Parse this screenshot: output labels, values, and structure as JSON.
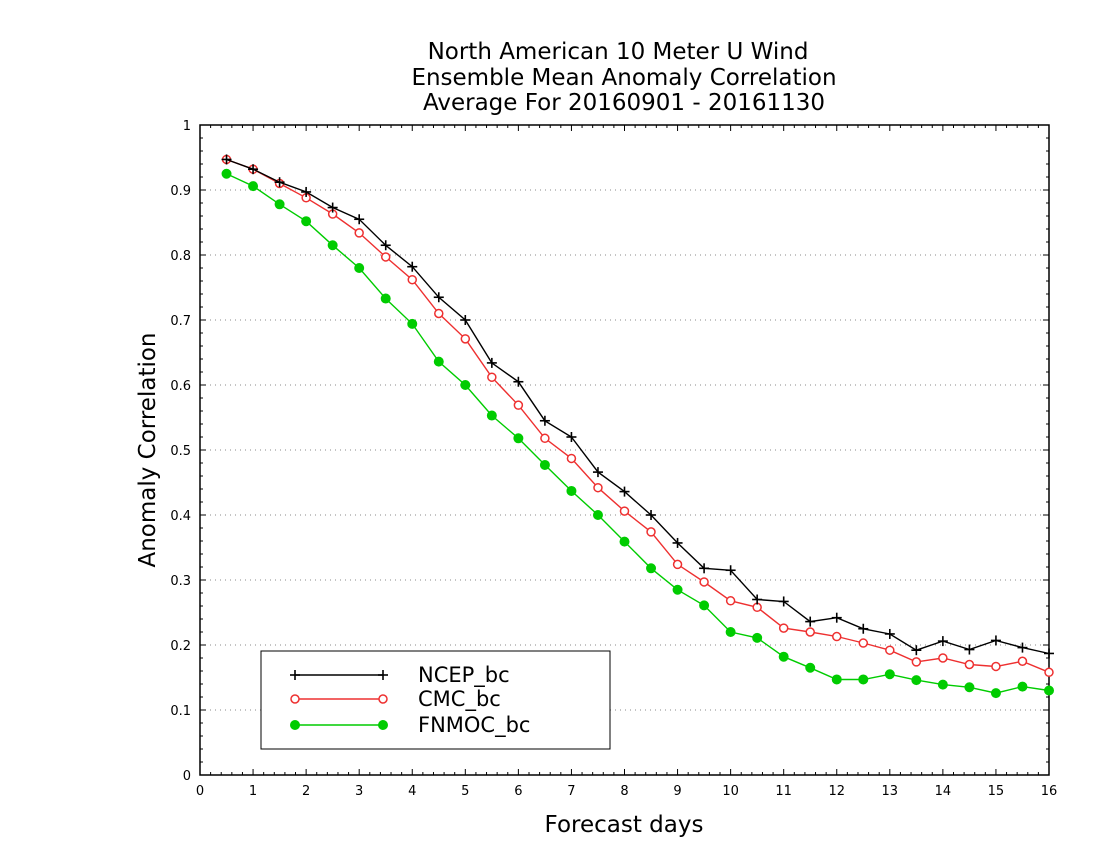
{
  "chart_data": {
    "type": "line",
    "title": [
      "North American 10 Meter U Wind",
      "Ensemble Mean Anomaly Correlation",
      "Average For 20160901 - 20161130"
    ],
    "xlabel": "Forecast days",
    "ylabel": "Anomaly Correlation",
    "xlim": [
      0,
      16
    ],
    "ylim": [
      0,
      1
    ],
    "xticks": [
      0,
      1,
      2,
      3,
      4,
      5,
      6,
      7,
      8,
      9,
      10,
      11,
      12,
      13,
      14,
      15,
      16
    ],
    "xtick_labels": [
      "0",
      "1",
      "2",
      "3",
      "4",
      "5",
      "6",
      "7",
      "8",
      "9",
      "10",
      "11",
      "12",
      "13",
      "14",
      "15",
      "16"
    ],
    "yticks": [
      0,
      0.1,
      0.2,
      0.3,
      0.4,
      0.5,
      0.6,
      0.7,
      0.8,
      0.9,
      1
    ],
    "ytick_labels": [
      "0",
      "0.1",
      "0.2",
      "0.3",
      "0.4",
      "0.5",
      "0.6",
      "0.7",
      "0.8",
      "0.9",
      "1"
    ],
    "grid": "horizontal-dotted",
    "legend_position": "bottom-left",
    "x": [
      0.5,
      1,
      1.5,
      2,
      2.5,
      3,
      3.5,
      4,
      4.5,
      5,
      5.5,
      6,
      6.5,
      7,
      7.5,
      8,
      8.5,
      9,
      9.5,
      10,
      10.5,
      11,
      11.5,
      12,
      12.5,
      13,
      13.5,
      14,
      14.5,
      15,
      15.5,
      16
    ],
    "series": [
      {
        "name": "NCEP_bc",
        "color": "#000000",
        "marker": "plus",
        "values": [
          0.947,
          0.932,
          0.912,
          0.897,
          0.873,
          0.855,
          0.815,
          0.782,
          0.735,
          0.7,
          0.634,
          0.605,
          0.545,
          0.52,
          0.466,
          0.436,
          0.4,
          0.357,
          0.318,
          0.315,
          0.27,
          0.267,
          0.236,
          0.242,
          0.225,
          0.217,
          0.192,
          0.206,
          0.193,
          0.207,
          0.196,
          0.187
        ]
      },
      {
        "name": "CMC_bc",
        "color": "#ee3030",
        "marker": "open-circle",
        "values": [
          0.947,
          0.932,
          0.91,
          0.888,
          0.863,
          0.834,
          0.797,
          0.762,
          0.71,
          0.671,
          0.612,
          0.569,
          0.518,
          0.487,
          0.442,
          0.406,
          0.374,
          0.324,
          0.297,
          0.268,
          0.258,
          0.226,
          0.22,
          0.213,
          0.203,
          0.192,
          0.174,
          0.18,
          0.17,
          0.167,
          0.175,
          0.158
        ]
      },
      {
        "name": "FNMOC_bc",
        "color": "#00cc00",
        "marker": "filled-circle",
        "values": [
          0.925,
          0.906,
          0.878,
          0.852,
          0.815,
          0.78,
          0.733,
          0.694,
          0.636,
          0.6,
          0.553,
          0.518,
          0.477,
          0.437,
          0.4,
          0.359,
          0.318,
          0.285,
          0.261,
          0.22,
          0.211,
          0.182,
          0.165,
          0.147,
          0.147,
          0.155,
          0.146,
          0.139,
          0.135,
          0.126,
          0.136,
          0.13
        ]
      }
    ]
  }
}
